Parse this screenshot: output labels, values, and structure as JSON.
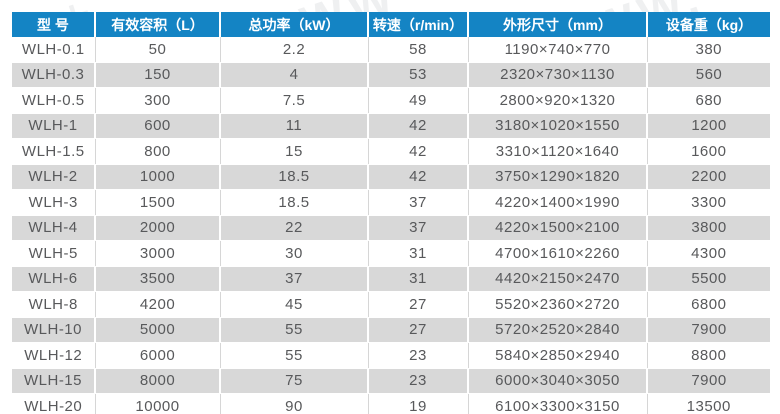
{
  "watermark": {
    "text_right": "WW.",
    "text_mid": "WW",
    "text_left": "九"
  },
  "colors": {
    "header_bg": "#1484c4",
    "header_text": "#ffffff",
    "row_alt_bg": "#d8d8d8",
    "row_bg": "#ffffff",
    "body_text": "#58595b",
    "bottom_rule": "#1f86d6"
  },
  "spec_table": {
    "columns": [
      {
        "key": "model",
        "label": "型 号"
      },
      {
        "key": "volume",
        "label": "有效容积（L）"
      },
      {
        "key": "power",
        "label": "总功率（kW）"
      },
      {
        "key": "speed",
        "label": "转速（r/min）"
      },
      {
        "key": "dimensions",
        "label": "外形尺寸（mm）"
      },
      {
        "key": "weight",
        "label": "设备重（kg）"
      }
    ],
    "rows": [
      [
        "WLH-0.1",
        "50",
        "2.2",
        "58",
        "1190×740×770",
        "380"
      ],
      [
        "WLH-0.3",
        "150",
        "4",
        "53",
        "2320×730×1130",
        "560"
      ],
      [
        "WLH-0.5",
        "300",
        "7.5",
        "49",
        "2800×920×1320",
        "680"
      ],
      [
        "WLH-1",
        "600",
        "11",
        "42",
        "3180×1020×1550",
        "1200"
      ],
      [
        "WLH-1.5",
        "800",
        "15",
        "42",
        "3310×1120×1640",
        "1600"
      ],
      [
        "WLH-2",
        "1000",
        "18.5",
        "42",
        "3750×1290×1820",
        "2200"
      ],
      [
        "WLH-3",
        "1500",
        "18.5",
        "37",
        "4220×1400×1990",
        "3300"
      ],
      [
        "WLH-4",
        "2000",
        "22",
        "37",
        "4220×1500×2100",
        "3800"
      ],
      [
        "WLH-5",
        "3000",
        "30",
        "31",
        "4700×1610×2260",
        "4300"
      ],
      [
        "WLH-6",
        "3500",
        "37",
        "31",
        "4420×2150×2470",
        "5500"
      ],
      [
        "WLH-8",
        "4200",
        "45",
        "27",
        "5520×2360×2720",
        "6800"
      ],
      [
        "WLH-10",
        "5000",
        "55",
        "27",
        "5720×2520×2840",
        "7900"
      ],
      [
        "WLH-12",
        "6000",
        "55",
        "23",
        "5840×2850×2940",
        "8800"
      ],
      [
        "WLH-15",
        "8000",
        "75",
        "23",
        "6000×3040×3050",
        "7900"
      ],
      [
        "WLH-20",
        "10000",
        "90",
        "19",
        "6100×3300×3150",
        "13500"
      ]
    ]
  }
}
